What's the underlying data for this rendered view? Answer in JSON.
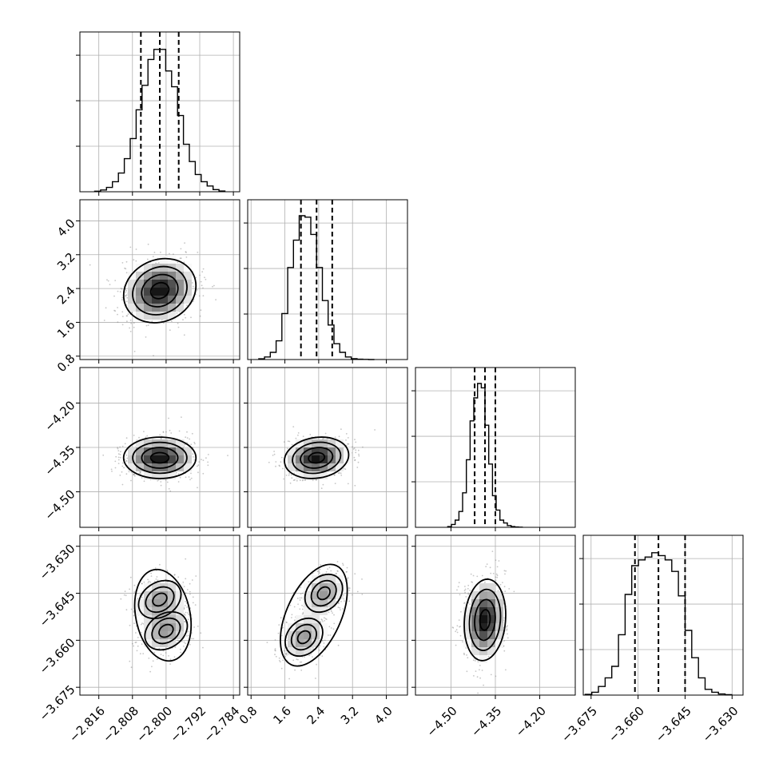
{
  "chart_data": {
    "type": "corner",
    "grid": true,
    "colors": {
      "line": "#000000",
      "grid": "#b0b0b0",
      "points": "#808080"
    },
    "parameters": [
      {
        "ticks": [
          -2.816,
          -2.808,
          -2.8,
          -2.792,
          -2.784
        ],
        "tick_labels": [
          "−2.816",
          "−2.808",
          "−2.800",
          "−2.792",
          "−2.784"
        ],
        "range": [
          -2.8205,
          -2.7825
        ],
        "mean": -2.8015,
        "sd": 0.0043,
        "quantiles": [
          -2.806,
          -2.8015,
          -2.797
        ]
      },
      {
        "ticks": [
          0.8,
          1.6,
          2.4,
          3.2,
          4.0
        ],
        "tick_labels": [
          "0.8",
          "1.6",
          "2.4",
          "3.2",
          "4.0"
        ],
        "range": [
          0.72,
          4.5
        ],
        "mean": 2.35,
        "sd": 0.38,
        "quantiles": [
          1.98,
          2.35,
          2.72
        ]
      },
      {
        "ticks": [
          -4.5,
          -4.35,
          -4.2
        ],
        "tick_labels": [
          "−4.50",
          "−4.35",
          "−4.20"
        ],
        "range": [
          -4.62,
          -4.08
        ],
        "mean": -4.385,
        "sd": 0.035,
        "quantiles": [
          -4.42,
          -4.385,
          -4.35
        ]
      },
      {
        "ticks": [
          -3.675,
          -3.66,
          -3.645,
          -3.63
        ],
        "tick_labels": [
          "−3.675",
          "−3.660",
          "−3.645",
          "−3.630"
        ],
        "range": [
          -3.6775,
          -3.6265
        ],
        "mean": -3.6535,
        "sd": 0.0065,
        "quantiles": [
          -3.661,
          -3.6535,
          -3.645
        ]
      }
    ],
    "histograms": [
      [
        0.004,
        0.012,
        0.03,
        0.07,
        0.13,
        0.23,
        0.37,
        0.57,
        0.74,
        0.92,
        0.99,
        0.99,
        0.84,
        0.73,
        0.53,
        0.33,
        0.21,
        0.12,
        0.07,
        0.04,
        0.015,
        0.005
      ],
      [
        0.005,
        0.018,
        0.05,
        0.13,
        0.32,
        0.64,
        0.83,
        1.0,
        0.99,
        0.87,
        0.64,
        0.41,
        0.24,
        0.11,
        0.05,
        0.018,
        0.006,
        0.002,
        0.001,
        0.0
      ],
      [
        0.005,
        0.02,
        0.05,
        0.11,
        0.24,
        0.47,
        0.74,
        0.9,
        1.0,
        0.97,
        0.71,
        0.44,
        0.22,
        0.12,
        0.05,
        0.03,
        0.012,
        0.005,
        0.002,
        0.001
      ],
      [
        0.005,
        0.02,
        0.06,
        0.12,
        0.2,
        0.42,
        0.7,
        0.9,
        0.94,
        0.96,
        0.99,
        0.97,
        0.94,
        0.86,
        0.69,
        0.45,
        0.26,
        0.12,
        0.04,
        0.02,
        0.008,
        0.003
      ]
    ],
    "pairs": [
      {
        "x": 0,
        "y": 1,
        "corr": 0.15,
        "modes": []
      },
      {
        "x": 0,
        "y": 2,
        "corr": 0.0,
        "modes": []
      },
      {
        "x": 1,
        "y": 2,
        "corr": 0.15,
        "modes": []
      },
      {
        "x": 0,
        "y": 3,
        "corr": 0.75,
        "modes": [
          [
            -2.8015,
            -3.647
          ],
          [
            -2.8,
            -3.657
          ]
        ]
      },
      {
        "x": 1,
        "y": 3,
        "corr": 0.72,
        "modes": [
          [
            2.52,
            -3.645
          ],
          [
            2.05,
            -3.659
          ]
        ]
      },
      {
        "x": 2,
        "y": 3,
        "corr": 0.12,
        "modes": []
      }
    ]
  }
}
